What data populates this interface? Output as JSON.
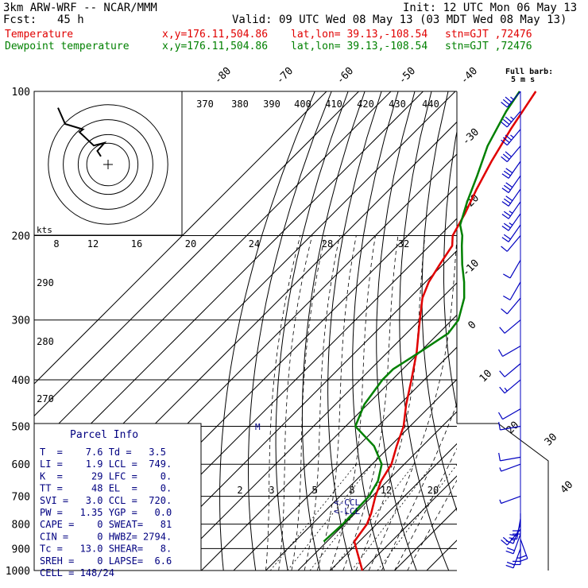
{
  "header": {
    "model": "3km ARW-WRF -- NCAR/MMM",
    "init": "Init: 12 UTC Mon 06 May 13",
    "fcst_label": "Fcst:",
    "fcst_value": "45 h",
    "valid": "Valid: 09 UTC Wed 08 May 13 (03 MDT Wed 08 May 13)",
    "temp_label": "Temperature",
    "temp_loc": "x,y=176.11,504.86",
    "temp_latlon": "lat,lon= 39.13,-108.54",
    "temp_stn": "stn=GJT ,72476",
    "dew_label": "Dewpoint temperature",
    "dew_loc": "x,y=176.11,504.86",
    "dew_latlon": "lat,lon= 39.13,-108.54",
    "dew_stn": "stn=GJT ,72476"
  },
  "barb_legend": {
    "line1": "Full barb:",
    "line2": "5 m s"
  },
  "hodograph": {
    "units": "kts",
    "ring_labels": [
      "8",
      "12",
      "16",
      "20",
      "24",
      "28",
      "32"
    ]
  },
  "parcel_info": {
    "title": "Parcel Info",
    "rows": [
      "T  =    7.6 Td =   3.5",
      "LI =    1.9 LCL =  749.",
      "K  =     29 LFC =    0.",
      "TT =     48 EL  =    0.",
      "SVI =   3.0 CCL =  720.",
      "PW =   1.35 YGP =   0.0",
      "CAPE =    0 SWEAT=   81",
      "CIN =     0 HWBZ= 2794.",
      "Tc =   13.0 SHEAR=   8.",
      "SREH =    0 LAPSE=  6.6",
      "CELL = 148/24"
    ]
  },
  "annotations": {
    "ccl": "<-CCL",
    "lcl": "<-LCL",
    "marker": "M"
  },
  "colors": {
    "temperature": "#e00000",
    "dewpoint": "#008000",
    "barb": "#0000c0",
    "parcel_text": "#000080"
  },
  "chart_data": {
    "type": "line",
    "title": "",
    "xlabel": "",
    "ylabel": "",
    "pressure_ticks": [
      100,
      200,
      300,
      400,
      500,
      600,
      700,
      800,
      900,
      1000
    ],
    "isotherm_labels": [
      -80,
      -70,
      -60,
      -50,
      -40,
      -30,
      -20,
      -10,
      0,
      10,
      20,
      30,
      40
    ],
    "dry_adiabat_labels": [
      270,
      280,
      290,
      370,
      380,
      390,
      400,
      410,
      420,
      430,
      440
    ],
    "mixing_ratio_labels": [
      "2",
      "3",
      "5",
      "8",
      "12",
      "20"
    ],
    "series": [
      {
        "name": "Temperature",
        "pressure": [
          1000,
          870,
          800,
          760,
          700,
          650,
          600,
          550,
          500,
          450,
          400,
          350,
          300,
          270,
          250,
          230,
          210,
          200,
          180,
          160,
          140,
          120,
          100
        ],
        "values": [
          20,
          8.5,
          7,
          5,
          1,
          -2,
          -4,
          -8,
          -12,
          -18,
          -24,
          -31,
          -40,
          -46,
          -49,
          -51,
          -53,
          -56,
          -59,
          -63,
          -67,
          -71,
          -75
        ]
      },
      {
        "name": "Dewpoint temperature",
        "pressure": [
          870,
          800,
          700,
          650,
          600,
          550,
          500,
          450,
          400,
          380,
          350,
          320,
          300,
          270,
          250,
          230,
          210,
          200,
          190,
          170,
          150,
          130,
          110,
          100
        ],
        "values": [
          -1,
          -0.5,
          -1,
          -3,
          -7,
          -15,
          -27,
          -31,
          -33,
          -33,
          -30,
          -27,
          -28,
          -33,
          -38,
          -44,
          -50,
          -53,
          -57,
          -62,
          -67,
          -73,
          -78,
          -80
        ]
      }
    ],
    "hodograph_trace_kts": [
      [
        -2,
        3
      ],
      [
        -3,
        5
      ],
      [
        -1,
        8
      ],
      [
        -4,
        7
      ],
      [
        -8,
        12
      ],
      [
        -7,
        13
      ],
      [
        -12,
        15
      ],
      [
        -14,
        21
      ]
    ],
    "wind_profile": [
      {
        "p": 900,
        "dir": 200,
        "spd": 4
      },
      {
        "p": 880,
        "dir": 180,
        "spd": 5
      },
      {
        "p": 860,
        "dir": 160,
        "spd": 4
      },
      {
        "p": 840,
        "dir": 200,
        "spd": 4
      },
      {
        "p": 820,
        "dir": 220,
        "spd": 4
      },
      {
        "p": 800,
        "dir": 200,
        "spd": 3
      },
      {
        "p": 780,
        "dir": 190,
        "spd": 4
      },
      {
        "p": 760,
        "dir": 180,
        "spd": 4
      },
      {
        "p": 700,
        "dir": 250,
        "spd": 1
      },
      {
        "p": 600,
        "dir": 250,
        "spd": 1
      },
      {
        "p": 580,
        "dir": 260,
        "spd": 2
      },
      {
        "p": 500,
        "dir": 260,
        "spd": 2
      },
      {
        "p": 460,
        "dir": 240,
        "spd": 2
      },
      {
        "p": 400,
        "dir": 230,
        "spd": 3
      },
      {
        "p": 370,
        "dir": 230,
        "spd": 2
      },
      {
        "p": 340,
        "dir": 240,
        "spd": 2
      },
      {
        "p": 300,
        "dir": 230,
        "spd": 2
      },
      {
        "p": 270,
        "dir": 220,
        "spd": 2
      },
      {
        "p": 250,
        "dir": 210,
        "spd": 2
      },
      {
        "p": 225,
        "dir": 210,
        "spd": 2
      },
      {
        "p": 200,
        "dir": 220,
        "spd": 2
      },
      {
        "p": 190,
        "dir": 215,
        "spd": 4
      },
      {
        "p": 180,
        "dir": 215,
        "spd": 5
      },
      {
        "p": 170,
        "dir": 215,
        "spd": 5
      },
      {
        "p": 160,
        "dir": 215,
        "spd": 6
      },
      {
        "p": 150,
        "dir": 215,
        "spd": 6
      },
      {
        "p": 140,
        "dir": 215,
        "spd": 6
      },
      {
        "p": 130,
        "dir": 220,
        "spd": 6
      },
      {
        "p": 120,
        "dir": 220,
        "spd": 7
      },
      {
        "p": 110,
        "dir": 220,
        "spd": 7
      },
      {
        "p": 100,
        "dir": 220,
        "spd": 7
      }
    ]
  }
}
